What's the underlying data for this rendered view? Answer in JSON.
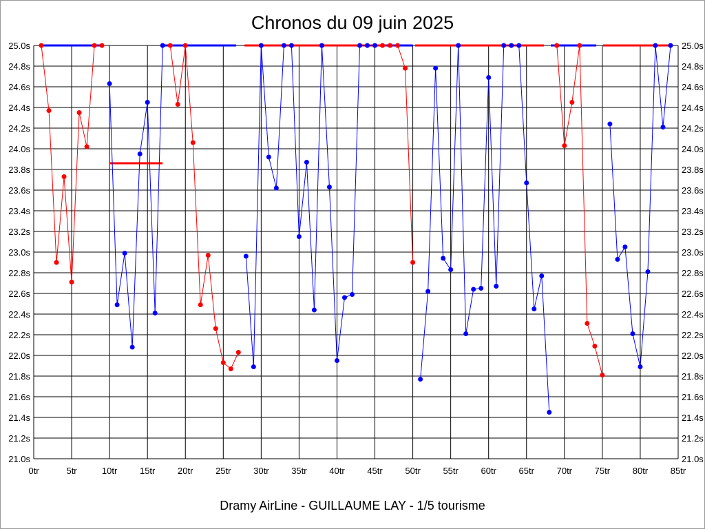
{
  "chart_data": {
    "type": "line",
    "title": "Chronos du 09 juin 2025",
    "footer": "Dramy AirLine - GUILLAUME LAY - 1/5 tourisme",
    "xlabel": "",
    "ylabel": "",
    "xlim": [
      0,
      85
    ],
    "ylim": [
      21.0,
      25.0
    ],
    "x_ticks": [
      "0tr",
      "5tr",
      "10tr",
      "15tr",
      "20tr",
      "25tr",
      "30tr",
      "35tr",
      "40tr",
      "45tr",
      "50tr",
      "55tr",
      "60tr",
      "65tr",
      "70tr",
      "75tr",
      "80tr",
      "85tr"
    ],
    "y_ticks": [
      "21.0s",
      "21.2s",
      "21.4s",
      "21.6s",
      "21.8s",
      "22.0s",
      "22.2s",
      "22.4s",
      "22.6s",
      "22.8s",
      "23.0s",
      "23.2s",
      "23.4s",
      "23.6s",
      "23.8s",
      "24.0s",
      "24.2s",
      "24.4s",
      "24.6s",
      "24.8s",
      "25.0s"
    ],
    "grid": true,
    "colors": {
      "red": "#ff0000",
      "blue": "#0000ff",
      "grid": "#000000"
    },
    "points": [
      [
        1,
        25.0,
        "r"
      ],
      [
        2,
        24.37,
        "r"
      ],
      [
        3,
        22.9,
        "r"
      ],
      [
        4,
        23.73,
        "r"
      ],
      [
        5,
        22.71,
        "r"
      ],
      [
        6,
        24.35,
        "r"
      ],
      [
        7,
        24.02,
        "r"
      ],
      [
        8,
        25.0,
        "r"
      ],
      [
        9,
        25.0,
        "r"
      ],
      [
        10,
        24.63,
        "b"
      ],
      [
        11,
        22.49,
        "b"
      ],
      [
        12,
        22.99,
        "b"
      ],
      [
        13,
        22.08,
        "b"
      ],
      [
        14,
        23.95,
        "b"
      ],
      [
        15,
        24.45,
        "b"
      ],
      [
        16,
        22.41,
        "b"
      ],
      [
        17,
        25.0,
        "b"
      ],
      [
        18,
        25.0,
        "r"
      ],
      [
        19,
        24.43,
        "r"
      ],
      [
        20,
        25.0,
        "r"
      ],
      [
        21,
        24.06,
        "r"
      ],
      [
        22,
        22.49,
        "r"
      ],
      [
        23,
        22.97,
        "r"
      ],
      [
        24,
        22.26,
        "r"
      ],
      [
        25,
        21.93,
        "r"
      ],
      [
        26,
        21.87,
        "r"
      ],
      [
        27,
        22.03,
        "r"
      ],
      [
        28,
        22.96,
        "b"
      ],
      [
        29,
        21.89,
        "b"
      ],
      [
        30,
        25.0,
        "b"
      ],
      [
        31,
        23.92,
        "b"
      ],
      [
        32,
        23.62,
        "b"
      ],
      [
        33,
        25.0,
        "b"
      ],
      [
        34,
        25.0,
        "b"
      ],
      [
        35,
        23.15,
        "b"
      ],
      [
        36,
        23.87,
        "b"
      ],
      [
        37,
        22.44,
        "b"
      ],
      [
        38,
        25.0,
        "b"
      ],
      [
        39,
        23.63,
        "b"
      ],
      [
        40,
        21.95,
        "b"
      ],
      [
        41,
        22.56,
        "b"
      ],
      [
        42,
        22.59,
        "b"
      ],
      [
        43,
        25.0,
        "b"
      ],
      [
        44,
        25.0,
        "b"
      ],
      [
        45,
        25.0,
        "b"
      ],
      [
        46,
        25.0,
        "r"
      ],
      [
        47,
        25.0,
        "r"
      ],
      [
        48,
        25.0,
        "r"
      ],
      [
        49,
        24.78,
        "r"
      ],
      [
        50,
        22.9,
        "r"
      ],
      [
        51,
        21.77,
        "b"
      ],
      [
        52,
        22.62,
        "b"
      ],
      [
        53,
        24.78,
        "b"
      ],
      [
        54,
        22.94,
        "b"
      ],
      [
        55,
        22.83,
        "b"
      ],
      [
        56,
        25.0,
        "b"
      ],
      [
        57,
        22.21,
        "b"
      ],
      [
        58,
        22.64,
        "b"
      ],
      [
        59,
        22.65,
        "b"
      ],
      [
        60,
        24.69,
        "b"
      ],
      [
        61,
        22.67,
        "b"
      ],
      [
        62,
        25.0,
        "b"
      ],
      [
        63,
        25.0,
        "b"
      ],
      [
        64,
        25.0,
        "b"
      ],
      [
        65,
        23.67,
        "b"
      ],
      [
        66,
        22.45,
        "b"
      ],
      [
        67,
        22.77,
        "b"
      ],
      [
        68,
        21.45,
        "b"
      ],
      [
        69,
        25.0,
        "r"
      ],
      [
        70,
        24.03,
        "r"
      ],
      [
        71,
        24.45,
        "r"
      ],
      [
        72,
        25.0,
        "r"
      ],
      [
        73,
        22.31,
        "r"
      ],
      [
        74,
        22.09,
        "r"
      ],
      [
        75,
        21.81,
        "r"
      ],
      [
        76,
        24.24,
        "b"
      ],
      [
        77,
        22.93,
        "b"
      ],
      [
        78,
        23.05,
        "b"
      ],
      [
        79,
        22.21,
        "b"
      ],
      [
        80,
        21.89,
        "b"
      ],
      [
        81,
        22.81,
        "b"
      ],
      [
        82,
        25.0,
        "b"
      ],
      [
        83,
        24.21,
        "b"
      ],
      [
        84,
        25.0,
        "b"
      ]
    ],
    "reference_lines": [
      {
        "from": 1,
        "to": 9,
        "y": 25.0,
        "c": "b"
      },
      {
        "from": 10,
        "to": 17,
        "y": 23.86,
        "c": "r"
      },
      {
        "from": 17,
        "to": 26.7,
        "y": 25.0,
        "c": "b"
      },
      {
        "from": 27.8,
        "to": 46.5,
        "y": 25.0,
        "c": "r"
      },
      {
        "from": 46.5,
        "to": 50,
        "y": 25.0,
        "c": "b"
      },
      {
        "from": 50.3,
        "to": 67.3,
        "y": 25.0,
        "c": "r"
      },
      {
        "from": 68.2,
        "to": 74.2,
        "y": 25.0,
        "c": "b"
      },
      {
        "from": 75.1,
        "to": 84,
        "y": 25.0,
        "c": "r"
      }
    ]
  }
}
